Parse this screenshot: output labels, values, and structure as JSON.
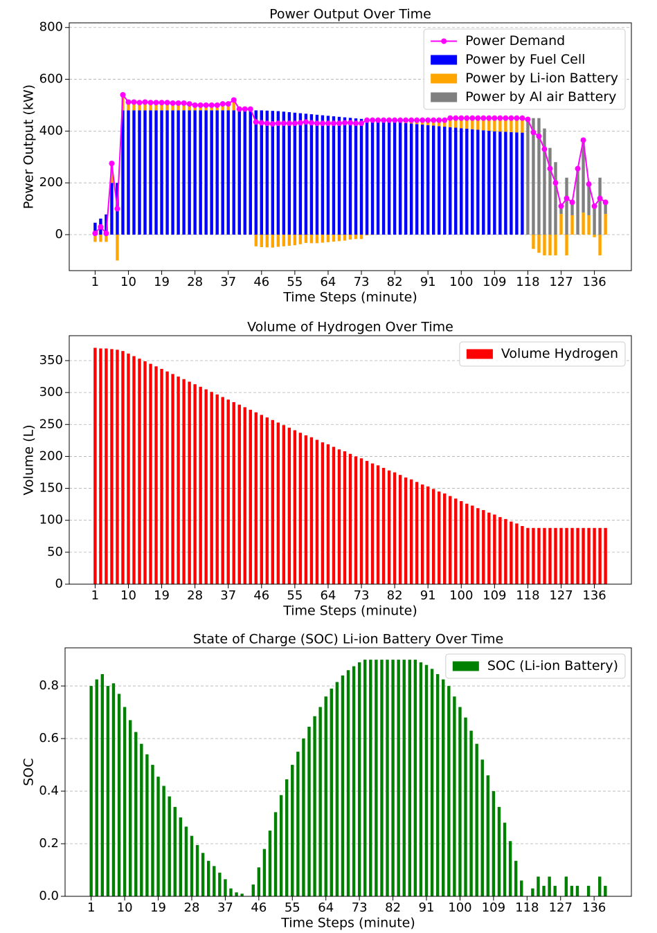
{
  "chart_data": [
    {
      "type": "bar",
      "stacked": true,
      "title": "Power Output Over Time",
      "xlabel": "Time Steps (minute)",
      "ylabel": "Power Output (kW)",
      "x": [
        1,
        2.5,
        4,
        5.5,
        7,
        8.5,
        10,
        11.5,
        13,
        14.5,
        16,
        17.5,
        19,
        20.5,
        22,
        23.5,
        25,
        26.5,
        28,
        29.5,
        31,
        32.5,
        34,
        35.5,
        37,
        38.5,
        40,
        41.5,
        43,
        44.5,
        46,
        47.5,
        49,
        50.5,
        52,
        53.5,
        55,
        56.5,
        58,
        59.5,
        61,
        62.5,
        64,
        65.5,
        67,
        68.5,
        70,
        71.5,
        73,
        74.5,
        76,
        77.5,
        79,
        80.5,
        82,
        83.5,
        85,
        86.5,
        88,
        89.5,
        91,
        92.5,
        94,
        95.5,
        97,
        98.5,
        100,
        101.5,
        103,
        104.5,
        106,
        107.5,
        109,
        110.5,
        112,
        113.5,
        115,
        116.5,
        118,
        119.5,
        121,
        122.5,
        124,
        125.5,
        127,
        128.5,
        130,
        131.5,
        133,
        134.5,
        136,
        137.5,
        139
      ],
      "series": [
        {
          "name": "Power Demand",
          "type": "line",
          "color": "#ff00ff",
          "values": [
            5,
            30,
            5,
            275,
            100,
            540,
            512,
            512,
            510,
            512,
            510,
            510,
            510,
            510,
            508,
            508,
            508,
            505,
            500,
            500,
            500,
            500,
            500,
            505,
            505,
            520,
            485,
            485,
            485,
            435,
            432,
            430,
            428,
            430,
            430,
            430,
            430,
            432,
            435,
            432,
            430,
            430,
            430,
            430,
            430,
            432,
            432,
            430,
            430,
            442,
            442,
            442,
            442,
            442,
            442,
            442,
            442,
            442,
            442,
            442,
            442,
            442,
            442,
            442,
            450,
            450,
            450,
            450,
            450,
            450,
            450,
            450,
            450,
            450,
            450,
            450,
            450,
            450,
            445,
            395,
            380,
            330,
            255,
            200,
            110,
            140,
            125,
            255,
            365,
            195,
            110,
            140,
            125
          ]
        },
        {
          "name": "Power by Fuel Cell",
          "color": "#0000ff",
          "values": [
            46,
            62,
            78,
            200,
            200,
            480,
            480,
            480,
            480,
            480,
            480,
            480,
            480,
            480,
            480,
            480,
            480,
            480,
            480,
            480,
            480,
            480,
            480,
            480,
            480,
            480,
            480,
            480,
            480,
            480,
            480,
            479,
            478,
            477,
            475,
            473,
            471,
            469,
            467,
            465,
            463,
            461,
            459,
            457,
            455,
            453,
            451,
            449,
            447,
            445,
            443,
            441,
            439,
            437,
            435,
            433,
            431,
            429,
            427,
            425,
            423,
            421,
            419,
            417,
            415,
            413,
            411,
            409,
            407,
            405,
            403,
            401,
            399,
            398,
            397,
            396,
            395,
            394,
            0,
            0,
            0,
            0,
            0,
            0,
            0,
            0,
            0,
            0,
            0,
            0,
            0,
            0,
            0
          ]
        },
        {
          "name": "Power by Li-ion Battery",
          "color": "#ffa500",
          "values": [
            -28,
            -28,
            -28,
            75,
            -100,
            60,
            32,
            32,
            30,
            32,
            30,
            30,
            30,
            30,
            28,
            28,
            28,
            25,
            20,
            20,
            20,
            20,
            20,
            25,
            25,
            40,
            5,
            5,
            5,
            -45,
            -48,
            -49,
            -50,
            -47,
            -45,
            -43,
            -41,
            -37,
            -32,
            -33,
            -33,
            -31,
            -29,
            -27,
            -25,
            -23,
            -19,
            -17,
            -17,
            -3,
            -1,
            1,
            3,
            5,
            7,
            9,
            11,
            13,
            15,
            17,
            19,
            21,
            23,
            25,
            35,
            37,
            39,
            41,
            43,
            45,
            47,
            49,
            51,
            52,
            53,
            54,
            55,
            56,
            0,
            -55,
            -70,
            -80,
            -80,
            -80,
            80,
            -80,
            75,
            0,
            85,
            75,
            -10,
            -80,
            80
          ]
        },
        {
          "name": "Power by Al air Battery",
          "color": "#808080",
          "values": [
            0,
            0,
            0,
            0,
            0,
            0,
            0,
            0,
            0,
            0,
            0,
            0,
            0,
            0,
            0,
            0,
            0,
            0,
            0,
            0,
            0,
            0,
            0,
            0,
            0,
            0,
            0,
            0,
            0,
            0,
            0,
            0,
            0,
            0,
            0,
            0,
            0,
            0,
            0,
            0,
            0,
            0,
            0,
            0,
            0,
            0,
            0,
            0,
            0,
            0,
            0,
            0,
            0,
            0,
            0,
            0,
            0,
            0,
            0,
            0,
            0,
            0,
            0,
            0,
            0,
            0,
            0,
            0,
            0,
            0,
            0,
            0,
            0,
            0,
            0,
            0,
            0,
            0,
            450,
            450,
            450,
            410,
            335,
            280,
            30,
            220,
            50,
            255,
            280,
            120,
            120,
            220,
            45
          ]
        }
      ],
      "xlim": [
        -6,
        146
      ],
      "xticks": [
        1,
        10,
        19,
        28,
        37,
        46,
        55,
        64,
        73,
        82,
        91,
        100,
        109,
        118,
        127,
        136
      ],
      "ylim": [
        -139,
        818
      ],
      "yticks": [
        0,
        200,
        400,
        600,
        800
      ],
      "grid": true,
      "legend": "upper right"
    },
    {
      "type": "bar",
      "title": "Volume of Hydrogen Over Time",
      "xlabel": "Time Steps (minute)",
      "ylabel": "Volume (L)",
      "x": [
        1,
        2.5,
        4,
        5.5,
        7,
        8.5,
        10,
        11.5,
        13,
        14.5,
        16,
        17.5,
        19,
        20.5,
        22,
        23.5,
        25,
        26.5,
        28,
        29.5,
        31,
        32.5,
        34,
        35.5,
        37,
        38.5,
        40,
        41.5,
        43,
        44.5,
        46,
        47.5,
        49,
        50.5,
        52,
        53.5,
        55,
        56.5,
        58,
        59.5,
        61,
        62.5,
        64,
        65.5,
        67,
        68.5,
        70,
        71.5,
        73,
        74.5,
        76,
        77.5,
        79,
        80.5,
        82,
        83.5,
        85,
        86.5,
        88,
        89.5,
        91,
        92.5,
        94,
        95.5,
        97,
        98.5,
        100,
        101.5,
        103,
        104.5,
        106,
        107.5,
        109,
        110.5,
        112,
        113.5,
        115,
        116.5,
        118,
        119.5,
        121,
        122.5,
        124,
        125.5,
        127,
        128.5,
        130,
        131.5,
        133,
        134.5,
        136,
        137.5,
        139
      ],
      "series": [
        {
          "name": "Volume Hydrogen",
          "color": "#ff0000",
          "values": [
            370,
            369,
            369,
            368,
            367,
            365,
            361,
            357,
            353,
            349,
            345,
            341,
            337,
            333,
            329,
            325,
            321,
            317,
            313,
            309,
            305,
            301,
            297,
            293,
            289,
            285,
            281,
            277,
            273,
            269,
            265,
            261,
            257,
            253,
            249,
            245,
            241,
            237,
            233,
            230,
            226,
            222,
            219,
            215,
            211,
            208,
            204,
            200,
            197,
            193,
            189,
            186,
            182,
            178,
            175,
            171,
            167,
            164,
            160,
            156,
            153,
            149,
            145,
            142,
            138,
            134,
            130,
            126,
            123,
            119,
            116,
            112,
            109,
            105,
            102,
            98,
            95,
            91,
            88,
            88,
            88,
            88,
            88,
            88,
            88,
            88,
            88,
            88,
            88,
            88,
            88,
            88,
            88
          ]
        }
      ],
      "xlim": [
        -6,
        146
      ],
      "xticks": [
        1,
        10,
        19,
        28,
        37,
        46,
        55,
        64,
        73,
        82,
        91,
        100,
        109,
        118,
        127,
        136
      ],
      "ylim": [
        0,
        389
      ],
      "yticks": [
        0,
        50,
        100,
        150,
        200,
        250,
        300,
        350
      ],
      "grid": true,
      "legend": "upper right"
    },
    {
      "type": "bar",
      "title": "State of Charge (SOC) Li-ion Battery Over Time",
      "xlabel": "Time Steps (minute)",
      "ylabel": "SOC",
      "x": [
        1,
        2.5,
        4,
        5.5,
        7,
        8.5,
        10,
        11.5,
        13,
        14.5,
        16,
        17.5,
        19,
        20.5,
        22,
        23.5,
        25,
        26.5,
        28,
        29.5,
        31,
        32.5,
        34,
        35.5,
        37,
        38.5,
        40,
        41.5,
        43,
        44.5,
        46,
        47.5,
        49,
        50.5,
        52,
        53.5,
        55,
        56.5,
        58,
        59.5,
        61,
        62.5,
        64,
        65.5,
        67,
        68.5,
        70,
        71.5,
        73,
        74.5,
        76,
        77.5,
        79,
        80.5,
        82,
        83.5,
        85,
        86.5,
        88,
        89.5,
        91,
        92.5,
        94,
        95.5,
        97,
        98.5,
        100,
        101.5,
        103,
        104.5,
        106,
        107.5,
        109,
        110.5,
        112,
        113.5,
        115,
        116.5,
        118,
        119.5,
        121,
        122.5,
        124,
        125.5,
        127,
        128.5,
        130,
        131.5,
        133,
        134.5,
        136,
        137.5,
        139
      ],
      "series": [
        {
          "name": "SOC (Li-ion Battery)",
          "color": "#008000",
          "values": [
            0.8,
            0.825,
            0.845,
            0.8,
            0.81,
            0.77,
            0.72,
            0.67,
            0.625,
            0.58,
            0.54,
            0.5,
            0.455,
            0.42,
            0.38,
            0.34,
            0.3,
            0.265,
            0.23,
            0.195,
            0.165,
            0.135,
            0.115,
            0.09,
            0.065,
            0.03,
            0.015,
            0.01,
            0,
            0.045,
            0.11,
            0.18,
            0.25,
            0.32,
            0.385,
            0.445,
            0.5,
            0.55,
            0.6,
            0.645,
            0.685,
            0.72,
            0.76,
            0.79,
            0.815,
            0.84,
            0.86,
            0.875,
            0.89,
            0.9,
            0.9,
            0.9,
            0.9,
            0.9,
            0.9,
            0.9,
            0.9,
            0.9,
            0.9,
            0.89,
            0.88,
            0.865,
            0.845,
            0.825,
            0.8,
            0.76,
            0.72,
            0.68,
            0.63,
            0.58,
            0.52,
            0.46,
            0.4,
            0.34,
            0.28,
            0.21,
            0.135,
            0.06,
            0,
            0.03,
            0.075,
            0.04,
            0.075,
            0.04,
            0,
            0.075,
            0.04,
            0.04,
            0,
            0.04,
            0,
            0.075,
            0.04
          ]
        }
      ],
      "xlim": [
        -6,
        146
      ],
      "xticks": [
        1,
        10,
        19,
        28,
        37,
        46,
        55,
        64,
        73,
        82,
        91,
        100,
        109,
        118,
        127,
        136
      ],
      "ylim": [
        0,
        0.945
      ],
      "yticks": [
        {
          "value": 0,
          "label": "0.0"
        },
        0.2,
        0.4,
        0.6,
        0.8
      ],
      "grid": true,
      "legend": "upper right"
    }
  ]
}
